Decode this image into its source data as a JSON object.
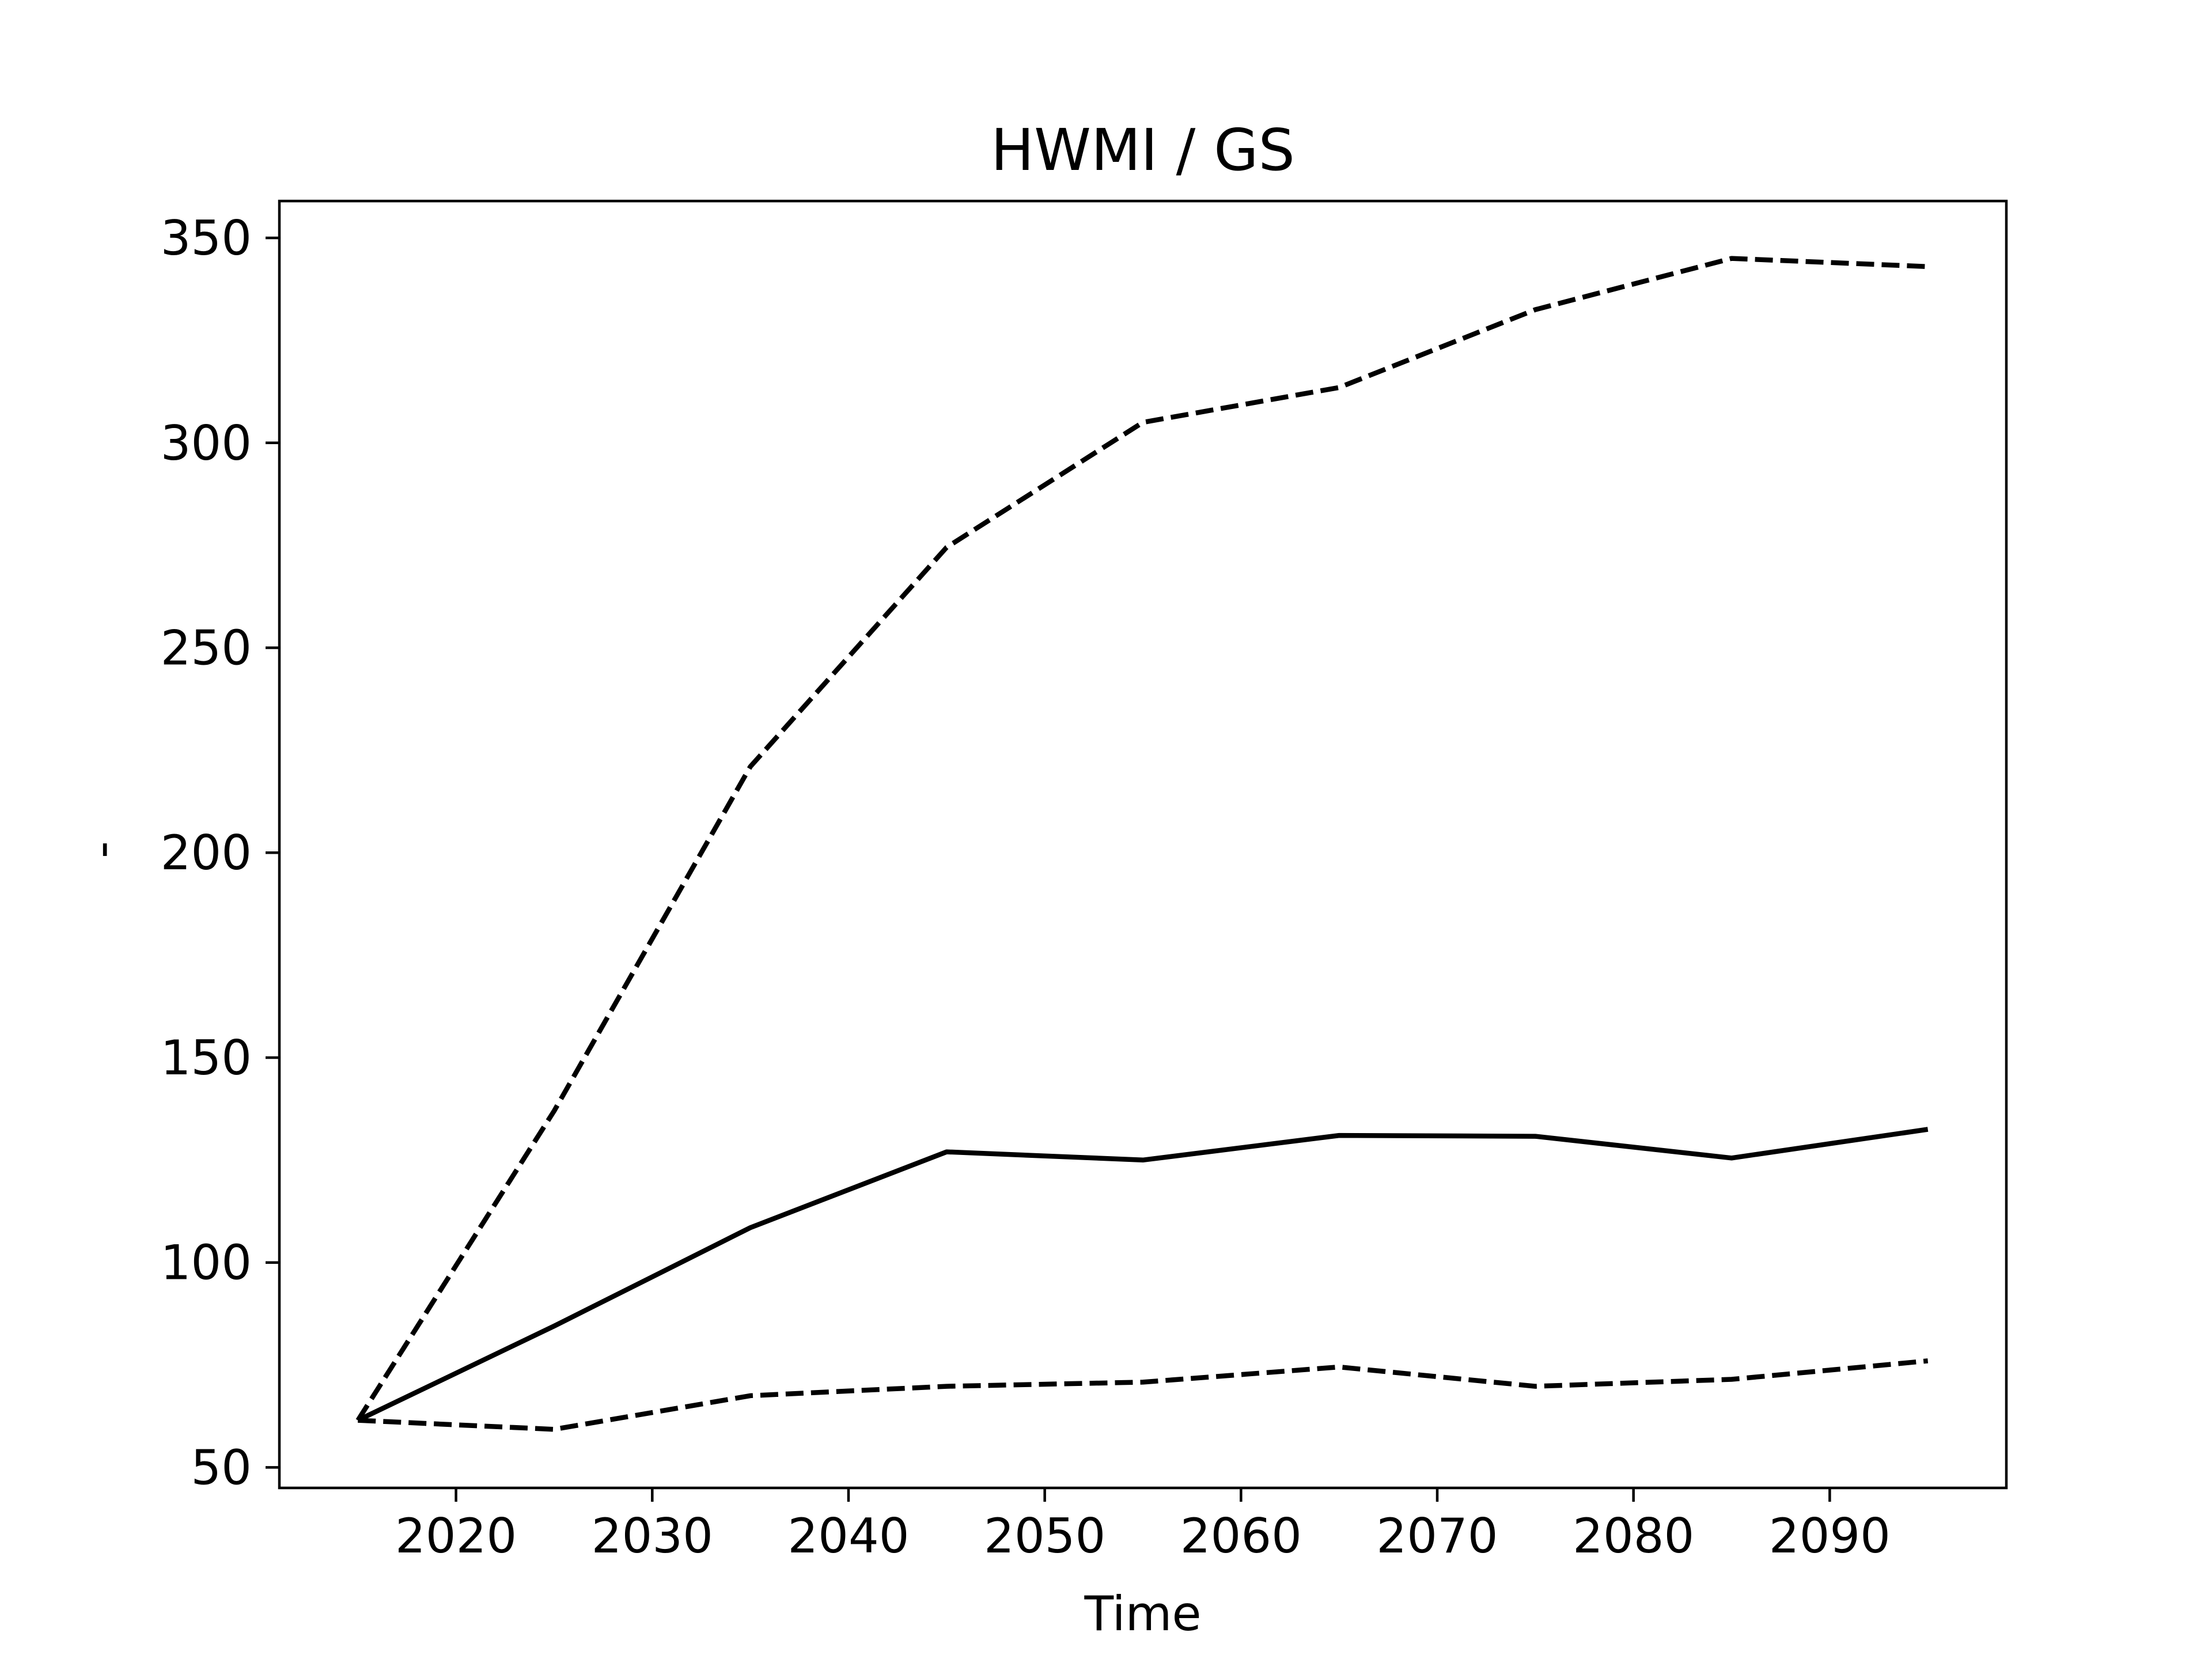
{
  "chart_data": {
    "type": "line",
    "title": "HWMI / GS",
    "xlabel": "Time",
    "ylabel": "-",
    "xlim": [
      2011,
      2099
    ],
    "ylim": [
      45,
      359
    ],
    "x_ticks": [
      2020,
      2030,
      2040,
      2050,
      2060,
      2070,
      2080,
      2090
    ],
    "y_ticks": [
      50,
      100,
      150,
      200,
      250,
      300,
      350
    ],
    "x": [
      2015,
      2025,
      2035,
      2045,
      2055,
      2065,
      2075,
      2085,
      2095
    ],
    "grid": false,
    "legend": false,
    "series": [
      {
        "style": "solid",
        "color": "#000000",
        "values": [
          61.5,
          84.5,
          108.5,
          127,
          125,
          131,
          130.8,
          125.5,
          132.5
        ]
      },
      {
        "style": "dashed",
        "color": "#000000",
        "values": [
          61.5,
          137,
          221,
          274.5,
          305,
          313.5,
          332.5,
          345,
          343
        ]
      },
      {
        "style": "dashed",
        "color": "#000000",
        "values": [
          61.5,
          59.3,
          67.5,
          69.8,
          70.8,
          74.5,
          69.8,
          71.5,
          76
        ]
      }
    ]
  }
}
